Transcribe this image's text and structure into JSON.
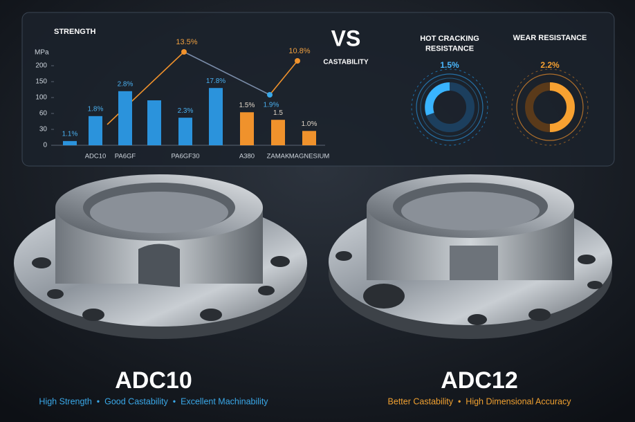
{
  "header": {
    "vs": "VS"
  },
  "chart_data": {
    "type": "bar",
    "title": "STRENGTH",
    "y_unit": "MPa",
    "categories": [
      null,
      "ADC10",
      "PA6GF",
      null,
      "PA6GF30",
      null,
      "A380",
      "ZAMAK",
      "MAGNESIUM"
    ],
    "values": [
      8,
      55,
      120,
      93,
      52,
      130,
      63,
      48,
      27
    ],
    "bar_labels": [
      "1.1%",
      "1.8%",
      "2.8%",
      null,
      "2.3%",
      "17.8%",
      "1.5%",
      "1.5",
      "1.0%"
    ],
    "colors": [
      "#2b93dc",
      "#2b93dc",
      "#2b93dc",
      "#2b93dc",
      "#2b93dc",
      "#2b93dc",
      "#f0922c",
      "#f0922c",
      "#f0922c"
    ],
    "ylim": [
      0,
      200
    ],
    "yticks": [
      0,
      30,
      60,
      100,
      150,
      200
    ]
  },
  "castability": {
    "label": "CASTABILITY",
    "points": [
      "13.5%",
      "1.9%",
      "10.8%"
    ]
  },
  "gauges": [
    {
      "title": "HOT CRACKING\nRESISTANCE",
      "value": "1.5%"
    },
    {
      "title": "WEAR RESISTANCE",
      "value": "2.2%"
    }
  ],
  "products": [
    {
      "name": "ADC10",
      "features": "High Strength  •  Good Castability  •  Excellent Machinability"
    },
    {
      "name": "ADC12",
      "features": "Better Castability  •  High Dimensional Accuracy"
    }
  ]
}
